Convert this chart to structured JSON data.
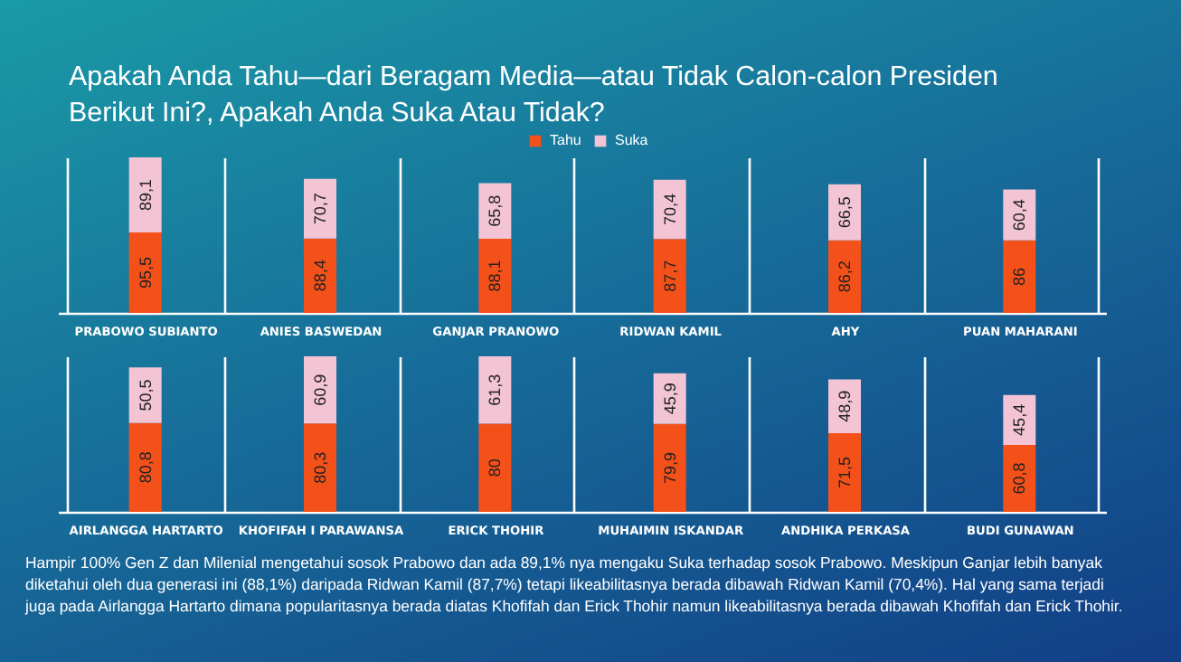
{
  "chart_data": [
    {
      "type": "bar",
      "title": "Apakah Anda Tahu—dari Beragam Media—atau Tidak Calon-calon Presiden Berikut Ini?, Apakah Anda Suka Atau Tidak?",
      "categories": [
        "PRABOWO SUBIANTO",
        "ANIES BASWEDAN",
        "GANJAR PRANOWO",
        "RIDWAN KAMIL",
        "AHY",
        "PUAN MAHARANI"
      ],
      "stacked": true,
      "grid": "x",
      "legend": "top",
      "series": [
        {
          "name": "Tahu",
          "color": "#f4511a",
          "values": [
            95.5,
            88.4,
            88.1,
            87.7,
            86.2,
            86
          ],
          "value_labels": [
            "95,5",
            "88,4",
            "88,1",
            "87,7",
            "86,2",
            "86"
          ]
        },
        {
          "name": "Suka",
          "color": "#f2c4d4",
          "values": [
            89.1,
            70.7,
            65.8,
            70.4,
            66.5,
            60.4
          ],
          "value_labels": [
            "89,1",
            "70,7",
            "65,8",
            "70,4",
            "66,5",
            "60,4"
          ]
        }
      ]
    },
    {
      "type": "bar",
      "categories": [
        "AIRLANGGA HARTARTO",
        "KHOFIFAH I PARAWANSA",
        "ERICK THOHIR",
        "MUHAIMIN ISKANDAR",
        "ANDHIKA PERKASA",
        "BUDI GUNAWAN"
      ],
      "stacked": true,
      "grid": "x",
      "series": [
        {
          "color": "#f4511a",
          "values": [
            80.8,
            80.3,
            80,
            79.9,
            71.5,
            60.8
          ],
          "value_labels": [
            "80,8",
            "80,3",
            "80",
            "79,9",
            "71,5",
            "60,8"
          ]
        },
        {
          "color": "#f2c4d4",
          "values": [
            50.5,
            60.9,
            61.3,
            45.9,
            48.9,
            45.4
          ],
          "value_labels": [
            "50,5",
            "60,9",
            "61,3",
            "45,9",
            "48,9",
            "45,4"
          ]
        }
      ],
      "annotations": [
        "Hampir 100% Gen Z dan Milenial mengetahui sosok Prabowo  dan ada 89,1% nya mengaku Suka terhadap sosok Prabowo. Meskipun Ganjar lebih banyak diketahui oleh dua generasi ini (88,1%) daripada Ridwan Kamil (87,7%) tetapi likeabilitasnya berada dibawah Ridwan Kamil (70,4%). Hal yang sama terjadi juga pada Airlangga Hartarto dimana popularitasnya berada diatas Khofifah dan Erick Thohir namun likeabilitasnya berada dibawah Khofifah dan Erick Thohir."
      ]
    }
  ]
}
